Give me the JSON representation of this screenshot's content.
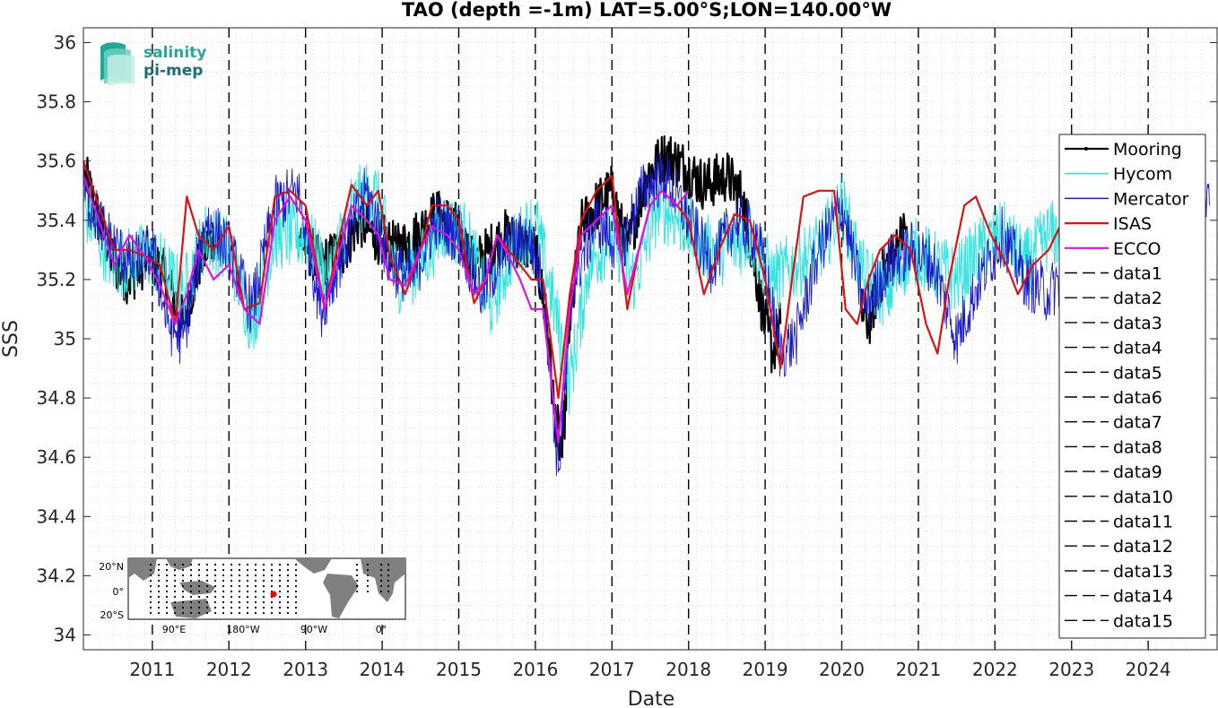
{
  "chart_data": {
    "type": "line",
    "title": "TAO (depth =-1m) LAT=5.00°S;LON=140.00°W",
    "xlabel": "Date",
    "ylabel": "SSS",
    "xlim": [
      2010.1,
      2024.9
    ],
    "ylim": [
      33.95,
      36.05
    ],
    "x_ticks": [
      "2011",
      "2012",
      "2013",
      "2014",
      "2015",
      "2016",
      "2017",
      "2018",
      "2019",
      "2020",
      "2021",
      "2022",
      "2023",
      "2024"
    ],
    "y_ticks": [
      "34",
      "34.2",
      "34.4",
      "34.6",
      "34.8",
      "35",
      "35.2",
      "35.4",
      "35.6",
      "35.8",
      "36"
    ],
    "grid": true,
    "legend_position": "right",
    "series": [
      {
        "name": "Mooring",
        "color": "#000000",
        "width": 2.2,
        "noise": 0.09,
        "x": [
          2010.12,
          2010.3,
          2010.5,
          2010.7,
          2010.95,
          2011.2,
          2011.4,
          2011.6,
          2011.8,
          2012.6,
          2012.9,
          2013.2,
          2013.5,
          2013.7,
          2013.9,
          2014.2,
          2014.45,
          2014.7,
          2014.95,
          2015.2,
          2015.4,
          2015.6,
          2015.8,
          2016.0,
          2016.15,
          2016.25,
          2016.35,
          2016.45,
          2016.6,
          2016.8,
          2017.0,
          2017.2,
          2017.45,
          2017.7,
          2017.95,
          2018.2,
          2018.5,
          2018.7,
          2019.0,
          2019.1,
          2019.2,
          2019.3,
          2020.25,
          2020.35,
          2020.5,
          2020.7,
          2020.85,
          2022.3,
          2022.35
        ],
        "y": [
          35.55,
          35.4,
          35.25,
          35.2,
          35.28,
          35.2,
          35.05,
          35.25,
          35.35,
          null,
          35.35,
          35.25,
          35.3,
          35.4,
          35.35,
          35.3,
          35.35,
          35.42,
          35.38,
          35.25,
          35.3,
          35.35,
          35.32,
          35.3,
          35.05,
          34.75,
          34.6,
          35.05,
          35.38,
          35.45,
          35.5,
          35.3,
          35.55,
          35.62,
          35.58,
          35.52,
          35.55,
          35.48,
          35.05,
          34.95,
          35.05,
          null,
          35.1,
          35.05,
          35.2,
          35.3,
          35.38,
          null,
          35.2
        ],
        "samples": 9
      },
      {
        "name": "Hycom",
        "color": "#33e5e0",
        "width": 1.0,
        "noise": 0.12,
        "x": [
          2010.1,
          2010.5,
          2011.0,
          2011.4,
          2011.7,
          2012.0,
          2012.3,
          2012.6,
          2013.0,
          2013.3,
          2013.6,
          2013.9,
          2014.2,
          2014.5,
          2014.8,
          2015.1,
          2015.4,
          2015.7,
          2016.0,
          2016.25,
          2016.45,
          2016.7,
          2017.0,
          2017.3,
          2017.6,
          2017.9,
          2018.2,
          2018.5,
          2018.8,
          2019.1,
          2019.4,
          2019.7,
          2020.0,
          2020.3,
          2020.6,
          2020.9,
          2021.2,
          2021.5,
          2021.8,
          2022.1,
          2022.4,
          2022.7,
          2022.9
        ],
        "y": [
          35.45,
          35.25,
          35.28,
          35.15,
          35.35,
          35.3,
          35.05,
          35.35,
          35.35,
          35.2,
          35.45,
          35.5,
          35.2,
          35.25,
          35.38,
          35.35,
          35.1,
          35.3,
          35.4,
          35.1,
          34.85,
          35.25,
          35.35,
          35.2,
          35.45,
          35.4,
          35.3,
          35.3,
          35.35,
          35.2,
          35.25,
          35.3,
          35.45,
          35.2,
          35.15,
          35.3,
          35.25,
          35.2,
          35.3,
          35.35,
          35.25,
          35.35,
          35.35
        ],
        "samples": 7
      },
      {
        "name": "Mercator",
        "color": "#1a1acc",
        "width": 0.9,
        "noise": 0.1,
        "x": [
          2010.1,
          2010.4,
          2010.7,
          2011.0,
          2011.2,
          2011.4,
          2011.7,
          2012.0,
          2012.3,
          2012.6,
          2012.9,
          2013.2,
          2013.5,
          2013.8,
          2014.1,
          2014.4,
          2014.7,
          2015.0,
          2015.3,
          2015.6,
          2015.9,
          2016.1,
          2016.3,
          2016.5,
          2016.8,
          2017.1,
          2017.4,
          2017.7,
          2018.0,
          2018.3,
          2018.6,
          2018.9,
          2019.2,
          2019.4,
          2019.7,
          2020.0,
          2020.3,
          2020.6,
          2020.9,
          2021.2,
          2021.5,
          2021.8,
          2022.1,
          2022.4,
          2022.7,
          2023.0,
          2023.3,
          2023.6,
          2023.9,
          2024.2,
          2024.5,
          2024.8
        ],
        "y": [
          35.5,
          35.35,
          35.25,
          35.3,
          35.05,
          35.0,
          35.4,
          35.3,
          35.1,
          35.45,
          35.5,
          35.1,
          35.3,
          35.5,
          35.25,
          35.2,
          35.4,
          35.35,
          35.15,
          35.3,
          35.35,
          35.2,
          34.55,
          35.2,
          35.4,
          35.3,
          35.5,
          35.55,
          35.4,
          35.25,
          35.4,
          35.35,
          34.95,
          35.0,
          35.3,
          35.45,
          35.1,
          35.25,
          35.3,
          35.25,
          35.0,
          35.2,
          35.35,
          35.2,
          35.15,
          35.25,
          35.3,
          35.35,
          35.3,
          35.35,
          35.4,
          35.45
        ],
        "samples": 7
      },
      {
        "name": "ISAS",
        "color": "#e01010",
        "width": 2.2,
        "noise": 0,
        "x": [
          2010.1,
          2010.3,
          2010.5,
          2010.7,
          2010.9,
          2011.1,
          2011.3,
          2011.45,
          2011.6,
          2011.8,
          2012.0,
          2012.2,
          2012.4,
          2012.6,
          2012.8,
          2013.0,
          2013.25,
          2013.45,
          2013.6,
          2013.8,
          2013.95,
          2014.1,
          2014.3,
          2014.5,
          2014.65,
          2014.85,
          2015.0,
          2015.2,
          2015.35,
          2015.5,
          2015.65,
          2015.8,
          2015.95,
          2016.1,
          2016.3,
          2016.45,
          2016.6,
          2016.8,
          2017.0,
          2017.2,
          2017.35,
          2017.5,
          2017.65,
          2017.85,
          2018.0,
          2018.2,
          2018.4,
          2018.6,
          2018.8,
          2019.0,
          2019.2,
          2019.35,
          2019.5,
          2019.7,
          2019.9,
          2020.05,
          2020.2,
          2020.35,
          2020.5,
          2020.7,
          2020.9,
          2021.1,
          2021.25,
          2021.4,
          2021.6,
          2021.75,
          2021.95,
          2022.15,
          2022.3,
          2022.5,
          2022.7,
          2022.85
        ],
        "y": [
          35.6,
          35.45,
          35.3,
          35.3,
          35.28,
          35.25,
          35.05,
          35.48,
          35.35,
          35.3,
          35.38,
          35.1,
          35.12,
          35.48,
          35.5,
          35.45,
          35.1,
          35.35,
          35.52,
          35.45,
          35.5,
          35.28,
          35.15,
          35.3,
          35.45,
          35.45,
          35.4,
          35.12,
          35.2,
          35.35,
          35.3,
          35.25,
          35.2,
          35.2,
          34.8,
          35.15,
          35.4,
          35.5,
          35.55,
          35.1,
          35.3,
          35.45,
          35.5,
          35.45,
          35.4,
          35.15,
          35.3,
          35.42,
          35.4,
          35.2,
          34.9,
          35.2,
          35.48,
          35.5,
          35.5,
          35.1,
          35.05,
          35.2,
          35.3,
          35.35,
          35.3,
          35.05,
          34.95,
          35.2,
          35.45,
          35.48,
          35.35,
          35.25,
          35.15,
          35.25,
          35.3,
          35.38
        ],
        "samples": 1
      },
      {
        "name": "ECCO",
        "color": "#e010e0",
        "width": 2.2,
        "noise": 0,
        "x": [
          2010.1,
          2010.3,
          2010.5,
          2010.7,
          2010.9,
          2011.1,
          2011.3,
          2011.45,
          2011.6,
          2011.8,
          2012.0,
          2012.2,
          2012.4,
          2012.6,
          2012.8,
          2013.0,
          2013.25,
          2013.45,
          2013.6,
          2013.8,
          2013.95,
          2014.1,
          2014.3,
          2014.5,
          2014.65,
          2014.85,
          2015.0,
          2015.2,
          2015.35,
          2015.5,
          2015.65,
          2015.8,
          2015.95,
          2016.1,
          2016.3,
          2016.45,
          2016.6,
          2016.8,
          2017.0,
          2017.2,
          2017.35,
          2017.5,
          2017.65,
          2017.85,
          2018.0
        ],
        "y": [
          35.55,
          35.4,
          35.25,
          35.35,
          35.28,
          35.18,
          35.05,
          35.15,
          35.3,
          35.2,
          35.25,
          35.1,
          35.05,
          35.4,
          35.48,
          35.4,
          35.1,
          35.3,
          35.45,
          35.4,
          35.35,
          35.2,
          35.18,
          35.3,
          35.38,
          35.35,
          35.3,
          35.15,
          35.2,
          35.35,
          35.28,
          35.2,
          35.1,
          35.1,
          34.65,
          35.1,
          35.35,
          35.4,
          35.45,
          35.15,
          35.3,
          35.45,
          35.5,
          35.45,
          35.5
        ],
        "samples": 1
      }
    ],
    "vertical_lines": [
      2011,
      2012,
      2013,
      2014,
      2015,
      2016,
      2017,
      2018,
      2019,
      2020,
      2021,
      2022,
      2023,
      2024
    ],
    "legend": [
      "Mooring",
      "Hycom",
      "Mercator",
      "ISAS",
      "ECCO",
      "data1",
      "data2",
      "data3",
      "data4",
      "data5",
      "data6",
      "data7",
      "data8",
      "data9",
      "data10",
      "data11",
      "data12",
      "data13",
      "data14",
      "data15"
    ],
    "inset_map": {
      "lat_labels": [
        "20°N",
        "0°",
        "20°S"
      ],
      "lon_labels": [
        "90°E",
        "180°W",
        "90°W",
        "0°"
      ]
    },
    "logo": {
      "line1": "salinity",
      "line2": "pi-mep"
    }
  }
}
